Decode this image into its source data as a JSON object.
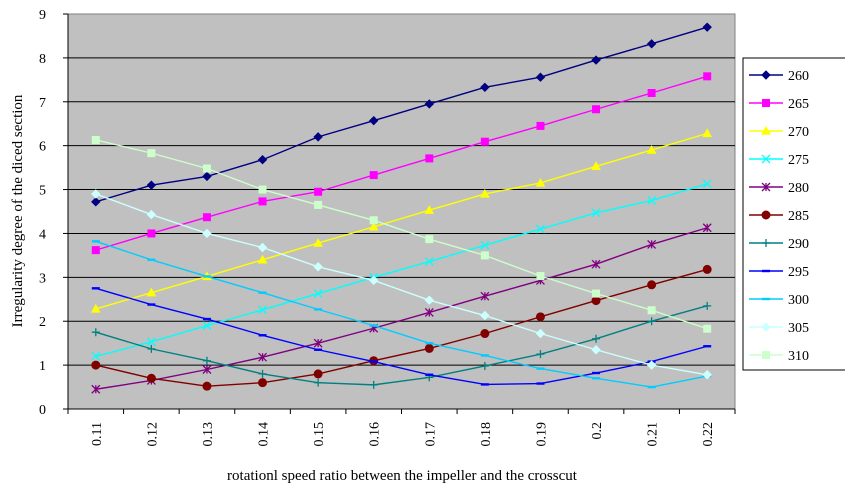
{
  "chart_data": {
    "type": "line",
    "xlabel": "rotationl speed ratio between the impeller and the crosscut",
    "ylabel": "Irregularity degree of the diced section",
    "ylim": [
      0,
      9
    ],
    "y_ticks": [
      0,
      1,
      2,
      3,
      4,
      5,
      6,
      7,
      8,
      9
    ],
    "categories": [
      "0.11",
      "0.12",
      "0.13",
      "0.14",
      "0.15",
      "0.16",
      "0.17",
      "0.18",
      "0.19",
      "0.2",
      "0.21",
      "0.22"
    ],
    "grid": "horizontal",
    "plot_background": "#c0c0c0",
    "legend_position": "right",
    "series": [
      {
        "name": "260",
        "color": "#000080",
        "marker": "diamond",
        "values": [
          4.72,
          5.1,
          5.3,
          5.68,
          6.2,
          6.57,
          6.95,
          7.33,
          7.56,
          7.95,
          8.32,
          8.7
        ]
      },
      {
        "name": "265",
        "color": "#ff00ff",
        "marker": "square",
        "values": [
          3.62,
          4.0,
          4.37,
          4.73,
          4.95,
          5.33,
          5.71,
          6.09,
          6.45,
          6.83,
          7.2,
          7.58
        ]
      },
      {
        "name": "270",
        "color": "#ffff00",
        "marker": "triangle",
        "values": [
          2.28,
          2.65,
          3.02,
          3.4,
          3.78,
          4.15,
          4.53,
          4.9,
          5.15,
          5.53,
          5.9,
          6.28
        ]
      },
      {
        "name": "275",
        "color": "#00ffff",
        "marker": "x",
        "values": [
          1.2,
          1.53,
          1.9,
          2.26,
          2.63,
          3.0,
          3.36,
          3.73,
          4.1,
          4.47,
          4.75,
          5.13
        ]
      },
      {
        "name": "280",
        "color": "#800080",
        "marker": "star",
        "values": [
          0.45,
          0.65,
          0.9,
          1.18,
          1.5,
          1.84,
          2.2,
          2.57,
          2.93,
          3.3,
          3.75,
          4.13
        ]
      },
      {
        "name": "285",
        "color": "#800000",
        "marker": "circle",
        "values": [
          1.0,
          0.7,
          0.52,
          0.6,
          0.8,
          1.1,
          1.38,
          1.72,
          2.1,
          2.47,
          2.83,
          3.18
        ]
      },
      {
        "name": "290",
        "color": "#008080",
        "marker": "plus",
        "values": [
          1.75,
          1.37,
          1.1,
          0.8,
          0.6,
          0.55,
          0.72,
          0.98,
          1.25,
          1.6,
          2.0,
          2.35
        ]
      },
      {
        "name": "295",
        "color": "#0000ff",
        "marker": "dash",
        "values": [
          2.75,
          2.38,
          2.05,
          1.68,
          1.35,
          1.08,
          0.78,
          0.56,
          0.58,
          0.82,
          1.08,
          1.43
        ]
      },
      {
        "name": "300",
        "color": "#00ccff",
        "marker": "dash",
        "values": [
          3.82,
          3.4,
          3.02,
          2.65,
          2.27,
          1.9,
          1.5,
          1.22,
          0.92,
          0.7,
          0.5,
          0.75
        ]
      },
      {
        "name": "305",
        "color": "#ccffff",
        "marker": "diamond",
        "values": [
          4.9,
          4.43,
          4.0,
          3.68,
          3.24,
          2.93,
          2.48,
          2.13,
          1.72,
          1.35,
          1.0,
          0.78
        ]
      },
      {
        "name": "310",
        "color": "#ccffcc",
        "marker": "square",
        "values": [
          6.13,
          5.83,
          5.48,
          5.0,
          4.65,
          4.3,
          3.87,
          3.5,
          3.03,
          2.63,
          2.25,
          1.83
        ]
      }
    ]
  }
}
